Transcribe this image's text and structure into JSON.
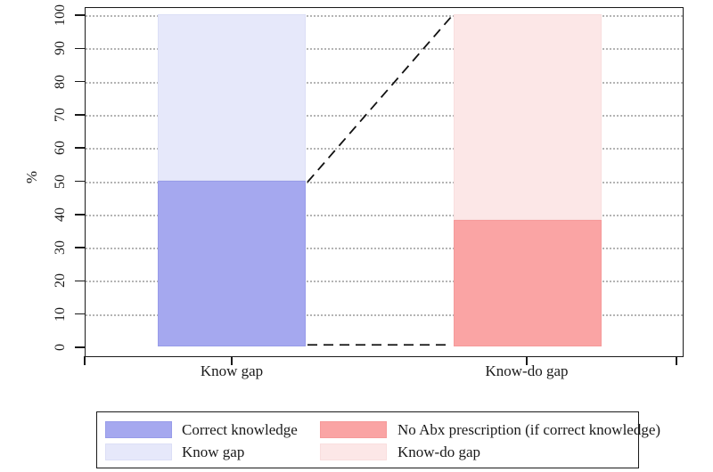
{
  "figure": {
    "background": "#ffffff"
  },
  "y_axis": {
    "title": "%",
    "ticks": [
      0,
      10,
      20,
      30,
      40,
      50,
      60,
      70,
      80,
      90,
      100
    ]
  },
  "x_axis": {
    "categories": [
      "Know gap",
      "Know-do gap"
    ]
  },
  "chart_data": {
    "type": "bar",
    "stacked": true,
    "title": "",
    "xlabel": "",
    "ylabel": "%",
    "ylim": [
      0,
      100
    ],
    "grid": "horizontal dotted",
    "legend_position": "bottom",
    "categories": [
      "Know gap",
      "Know-do gap"
    ],
    "series": [
      {
        "name": "Correct knowledge",
        "values": [
          50,
          0
        ]
      },
      {
        "name": "Know gap",
        "values": [
          50,
          0
        ]
      },
      {
        "name": "No Abx prescription (if correct knowledge)",
        "values": [
          0,
          38
        ]
      },
      {
        "name": "Know-do gap",
        "values": [
          0,
          62
        ]
      }
    ],
    "bars": [
      {
        "category": "Know gap",
        "segments": [
          {
            "label": "Correct knowledge",
            "value": 50,
            "color": "#a5a8ef",
            "border_color": "#989ce9"
          },
          {
            "label": "Know gap",
            "value": 50,
            "color": "#e6e8fa",
            "border_color": "#dcdff6"
          }
        ]
      },
      {
        "category": "Know-do gap",
        "segments": [
          {
            "label": "No Abx prescription (if correct knowledge)",
            "value": 38,
            "color": "#faa4a4",
            "border_color": "#f59a9a"
          },
          {
            "label": "Know-do gap",
            "value": 62,
            "color": "#fce7e7",
            "border_color": "#f9dede"
          }
        ]
      }
    ],
    "connectors": [
      {
        "style": "dashed",
        "from_value": 50,
        "to_value": 100
      },
      {
        "style": "dashed",
        "from_value": 1,
        "to_value": 1
      }
    ]
  },
  "legend": {
    "entries": [
      {
        "label": "Correct knowledge",
        "color": "#a5a8ef",
        "border_color": "#989ce9"
      },
      {
        "label": "Know gap",
        "color": "#e6e8fa",
        "border_color": "#dcdff6"
      },
      {
        "label": "No Abx prescription (if correct knowledge)",
        "color": "#faa4a4",
        "border_color": "#f59a9a"
      },
      {
        "label": "Know-do gap",
        "color": "#fce7e7",
        "border_color": "#f9dede"
      }
    ]
  },
  "colors": {
    "axis": "#1a1a1a",
    "gridline": "#b4b4b4",
    "connector": "#111111"
  }
}
